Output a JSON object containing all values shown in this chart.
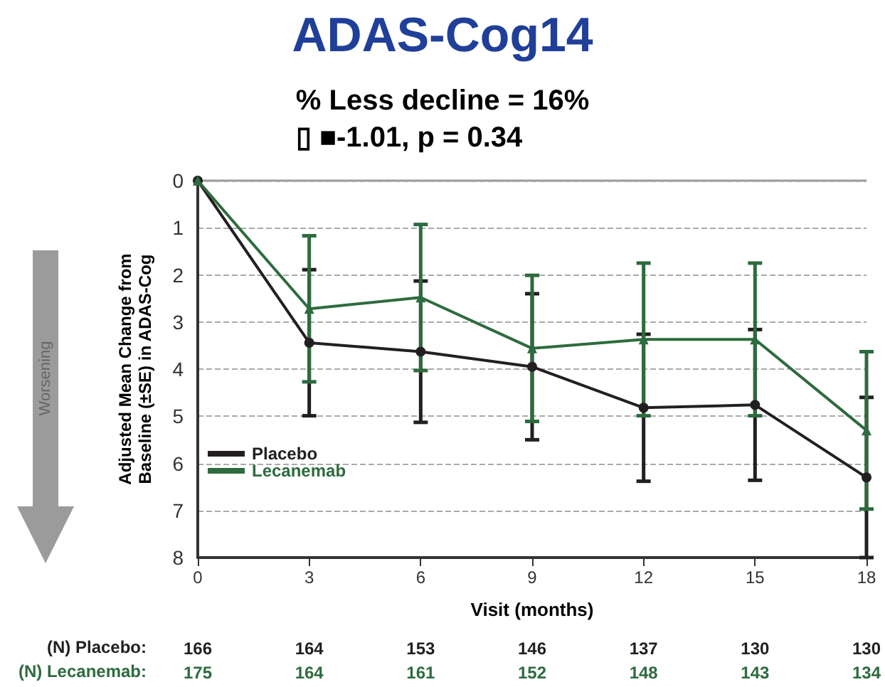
{
  "chart_data": {
    "type": "line",
    "title": "ADAS-Cog14",
    "subtitle": "% Less decline = 16%\n▯ ■-1.01, p = 0.34",
    "xlabel": "Visit (months)",
    "ylabel": "Adjusted Mean Change from\nBaseline (±SE) in ADAS-Cog",
    "x": [
      0,
      3,
      6,
      9,
      12,
      15,
      18
    ],
    "series": [
      {
        "name": "Placebo",
        "color": "#231f20",
        "marker": "circle",
        "values": [
          0,
          3.44,
          3.63,
          3.95,
          4.82,
          4.76,
          6.3
        ],
        "errors": [
          null,
          1.55,
          1.5,
          1.55,
          1.56,
          1.6,
          1.7
        ]
      },
      {
        "name": "Lecanemab",
        "color": "#2e6b3e",
        "marker": "triangle",
        "values": [
          0,
          2.72,
          2.48,
          3.56,
          3.37,
          3.37,
          5.3
        ],
        "errors": [
          null,
          1.55,
          1.55,
          1.55,
          1.62,
          1.62,
          1.67
        ]
      }
    ],
    "xlim": [
      0,
      18
    ],
    "xticks": [
      0,
      3,
      6,
      9,
      12,
      15,
      18
    ],
    "ylim": [
      8,
      0
    ],
    "yticks": [
      0,
      1,
      2,
      3,
      4,
      5,
      6,
      7,
      8
    ],
    "grid": "y",
    "legend": "bottom left",
    "line_style": "solid",
    "annotations": [
      "Worsening",
      "(N) Placebo:",
      "166",
      "164",
      "153",
      "146",
      "137",
      "130",
      "130",
      "(N) Lecanemab:",
      "175",
      "164",
      "161",
      "152",
      "148",
      "143",
      "134"
    ]
  }
}
